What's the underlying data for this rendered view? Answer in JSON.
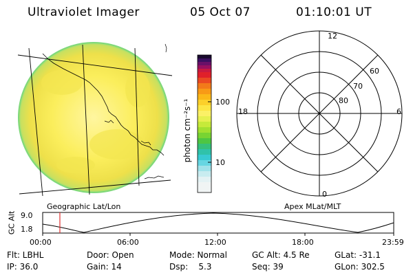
{
  "header": {
    "instrument": "Ultraviolet Imager",
    "date": "05 Oct 07",
    "time": "01:10:01 UT"
  },
  "colorbar": {
    "unit_label": "photon cm⁻²s⁻¹",
    "ticks": [
      "100",
      "10"
    ]
  },
  "panels": {
    "left_label": "Geographic Lat/Lon",
    "right_label": "Apex MLat/MLT"
  },
  "polar": {
    "mlt_labels": {
      "top": "12",
      "left": "18",
      "right": "6",
      "bottom": "0"
    },
    "lat_labels": [
      "60",
      "70",
      "80"
    ]
  },
  "alt_plot": {
    "ylabel": "GC Alt",
    "yticks": [
      "9.0",
      "1.8"
    ],
    "xticks": [
      "00:00",
      "06:00",
      "12:00",
      "18:00",
      "23:59"
    ],
    "current_time_fraction": 0.049,
    "marker_color": "#e03030"
  },
  "info_rows": [
    [
      "Flt: LBHL",
      "Door: Open",
      "Mode: Normal",
      "GC Alt: 4.5 Re",
      "GLat: -31.1"
    ],
    [
      "IP: 36.0",
      "Gain: 14",
      "Dsp:    5.3",
      "Seq: 39",
      "GLon: 302.5"
    ]
  ]
}
